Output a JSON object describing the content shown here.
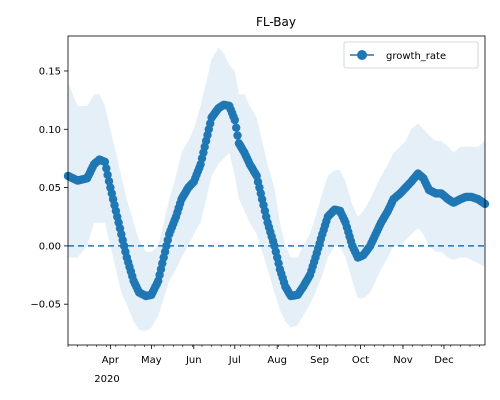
{
  "chart_data": {
    "type": "line",
    "title": "FL-Bay",
    "xlabel": "",
    "ylabel": "",
    "x_range": [
      "2020-03-01",
      "2020-12-31"
    ],
    "ylim": [
      -0.085,
      0.18
    ],
    "yticks": [
      -0.05,
      0.0,
      0.05,
      0.1,
      0.15
    ],
    "ytick_labels": [
      "−0.05",
      "0.00",
      "0.05",
      "0.10",
      "0.15"
    ],
    "xticks": [
      {
        "date": "2020-04-01",
        "label": "Apr"
      },
      {
        "date": "2020-05-01",
        "label": "May"
      },
      {
        "date": "2020-06-01",
        "label": "Jun"
      },
      {
        "date": "2020-07-01",
        "label": "Jul"
      },
      {
        "date": "2020-08-01",
        "label": "Aug"
      },
      {
        "date": "2020-09-01",
        "label": "Sep"
      },
      {
        "date": "2020-10-01",
        "label": "Oct"
      },
      {
        "date": "2020-11-01",
        "label": "Nov"
      },
      {
        "date": "2020-12-01",
        "label": "Dec"
      }
    ],
    "year_label": "2020",
    "grid": false,
    "legend": {
      "position": "top-right",
      "entries": [
        "growth_rate"
      ]
    },
    "colors": {
      "line": "#1f77b4",
      "band": "#c6dbef"
    },
    "reference_line": {
      "y": 0,
      "style": "dashed"
    },
    "series": [
      {
        "name": "growth_rate",
        "x": [
          "2020-03-01",
          "2020-03-08",
          "2020-03-15",
          "2020-03-20",
          "2020-03-24",
          "2020-03-28",
          "2020-04-01",
          "2020-04-05",
          "2020-04-09",
          "2020-04-13",
          "2020-04-18",
          "2020-04-22",
          "2020-04-27",
          "2020-05-01",
          "2020-05-06",
          "2020-05-10",
          "2020-05-14",
          "2020-05-19",
          "2020-05-23",
          "2020-05-28",
          "2020-06-01",
          "2020-06-06",
          "2020-06-10",
          "2020-06-14",
          "2020-06-19",
          "2020-06-23",
          "2020-06-27",
          "2020-07-01",
          "2020-07-04",
          "2020-07-08",
          "2020-07-12",
          "2020-07-17",
          "2020-07-21",
          "2020-07-25",
          "2020-07-30",
          "2020-08-03",
          "2020-08-07",
          "2020-08-11",
          "2020-08-16",
          "2020-08-20",
          "2020-08-25",
          "2020-08-29",
          "2020-09-03",
          "2020-09-07",
          "2020-09-12",
          "2020-09-16",
          "2020-09-20",
          "2020-09-25",
          "2020-09-29",
          "2020-10-03",
          "2020-10-08",
          "2020-10-12",
          "2020-10-16",
          "2020-10-21",
          "2020-10-25",
          "2020-10-30",
          "2020-11-03",
          "2020-11-07",
          "2020-11-12",
          "2020-11-16",
          "2020-11-20",
          "2020-11-25",
          "2020-11-29",
          "2020-12-04",
          "2020-12-08",
          "2020-12-13",
          "2020-12-17",
          "2020-12-21",
          "2020-12-26",
          "2020-12-31"
        ],
        "y": [
          0.06,
          0.056,
          0.058,
          0.07,
          0.074,
          0.072,
          0.05,
          0.03,
          0.01,
          -0.01,
          -0.03,
          -0.04,
          -0.043,
          -0.042,
          -0.03,
          -0.01,
          0.01,
          0.025,
          0.04,
          0.05,
          0.055,
          0.07,
          0.09,
          0.11,
          0.118,
          0.121,
          0.12,
          0.108,
          0.088,
          0.08,
          0.07,
          0.06,
          0.04,
          0.02,
          0.0,
          -0.02,
          -0.035,
          -0.043,
          -0.042,
          -0.035,
          -0.025,
          -0.01,
          0.01,
          0.025,
          0.031,
          0.03,
          0.02,
          0.0,
          -0.01,
          -0.008,
          0.0,
          0.01,
          0.02,
          0.03,
          0.04,
          0.045,
          0.05,
          0.055,
          0.062,
          0.058,
          0.048,
          0.045,
          0.045,
          0.04,
          0.037,
          0.04,
          0.042,
          0.042,
          0.04,
          0.036
        ],
        "lower": [
          -0.01,
          -0.01,
          0.0,
          0.02,
          0.02,
          0.02,
          0.0,
          -0.02,
          -0.04,
          -0.05,
          -0.065,
          -0.072,
          -0.073,
          -0.07,
          -0.06,
          -0.045,
          -0.03,
          -0.02,
          -0.01,
          0.0,
          0.01,
          0.02,
          0.04,
          0.06,
          0.07,
          0.075,
          0.08,
          0.06,
          0.04,
          0.03,
          0.02,
          0.01,
          -0.005,
          -0.02,
          -0.04,
          -0.055,
          -0.065,
          -0.07,
          -0.068,
          -0.06,
          -0.05,
          -0.04,
          -0.025,
          -0.01,
          0.0,
          0.0,
          -0.01,
          -0.03,
          -0.045,
          -0.045,
          -0.04,
          -0.03,
          -0.02,
          -0.01,
          0.0,
          0.0,
          0.005,
          0.01,
          0.015,
          0.01,
          0.0,
          -0.005,
          -0.005,
          -0.01,
          -0.012,
          -0.01,
          -0.01,
          -0.012,
          -0.015,
          -0.018
        ],
        "upper": [
          0.14,
          0.12,
          0.12,
          0.13,
          0.13,
          0.12,
          0.1,
          0.08,
          0.06,
          0.04,
          0.02,
          0.005,
          -0.005,
          -0.005,
          0.0,
          0.02,
          0.04,
          0.06,
          0.08,
          0.09,
          0.1,
          0.12,
          0.14,
          0.16,
          0.17,
          0.165,
          0.155,
          0.15,
          0.13,
          0.13,
          0.12,
          0.11,
          0.09,
          0.07,
          0.05,
          0.02,
          0.0,
          -0.01,
          -0.01,
          0.0,
          0.01,
          0.025,
          0.045,
          0.06,
          0.065,
          0.065,
          0.055,
          0.035,
          0.025,
          0.03,
          0.04,
          0.05,
          0.06,
          0.07,
          0.08,
          0.085,
          0.09,
          0.1,
          0.105,
          0.1,
          0.095,
          0.09,
          0.09,
          0.085,
          0.08,
          0.085,
          0.085,
          0.085,
          0.085,
          0.09
        ]
      }
    ]
  }
}
